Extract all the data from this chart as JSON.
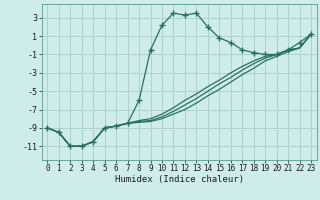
{
  "xlabel": "Humidex (Indice chaleur)",
  "bg_color": "#ceecea",
  "grid_color": "#aaceca",
  "line_color": "#2a7060",
  "marker": "+",
  "markersize": 4,
  "linewidth": 0.9,
  "xlim": [
    -0.5,
    23.5
  ],
  "ylim": [
    -12.5,
    4.5
  ],
  "yticks": [
    -11,
    -9,
    -7,
    -5,
    -3,
    -1,
    1,
    3
  ],
  "xticks": [
    0,
    1,
    2,
    3,
    4,
    5,
    6,
    7,
    8,
    9,
    10,
    11,
    12,
    13,
    14,
    15,
    16,
    17,
    18,
    19,
    20,
    21,
    22,
    23
  ],
  "series": [
    {
      "x": [
        0,
        1,
        2,
        3,
        4,
        5,
        6,
        7,
        8,
        9,
        10,
        11,
        12,
        13,
        14,
        15,
        16,
        17,
        18,
        19,
        20,
        21,
        22,
        23
      ],
      "y": [
        -9.0,
        -9.5,
        -11.0,
        -11.0,
        -10.5,
        -9.0,
        -8.8,
        -8.5,
        -6.0,
        -0.5,
        2.2,
        3.5,
        3.3,
        3.5,
        2.0,
        0.8,
        0.3,
        -0.5,
        -0.8,
        -1.0,
        -1.0,
        -0.5,
        0.3,
        1.2
      ],
      "has_markers": true
    },
    {
      "x": [
        0,
        1,
        2,
        3,
        4,
        5,
        6,
        7,
        8,
        9,
        10,
        11,
        12,
        13,
        14,
        15,
        16,
        17,
        18,
        19,
        20,
        21,
        22,
        23
      ],
      "y": [
        -9.0,
        -9.5,
        -11.0,
        -11.0,
        -10.5,
        -9.0,
        -8.8,
        -8.5,
        -8.2,
        -8.0,
        -7.5,
        -6.8,
        -6.0,
        -5.3,
        -4.5,
        -3.8,
        -3.0,
        -2.3,
        -1.7,
        -1.2,
        -1.0,
        -0.5,
        -0.3,
        1.2
      ],
      "has_markers": false
    },
    {
      "x": [
        0,
        1,
        2,
        3,
        4,
        5,
        6,
        7,
        8,
        9,
        10,
        11,
        12,
        13,
        14,
        15,
        16,
        17,
        18,
        19,
        20,
        21,
        22,
        23
      ],
      "y": [
        -9.0,
        -9.5,
        -11.0,
        -11.0,
        -10.5,
        -9.0,
        -8.8,
        -8.5,
        -8.3,
        -8.2,
        -7.8,
        -7.2,
        -6.5,
        -5.8,
        -5.0,
        -4.2,
        -3.5,
        -2.7,
        -2.0,
        -1.4,
        -1.0,
        -0.5,
        -0.3,
        1.2
      ],
      "has_markers": false
    },
    {
      "x": [
        0,
        1,
        2,
        3,
        4,
        5,
        6,
        7,
        8,
        9,
        10,
        11,
        12,
        13,
        14,
        15,
        16,
        17,
        18,
        19,
        20,
        21,
        22,
        23
      ],
      "y": [
        -9.0,
        -9.5,
        -11.0,
        -11.0,
        -10.5,
        -9.0,
        -8.8,
        -8.5,
        -8.4,
        -8.3,
        -8.0,
        -7.5,
        -7.0,
        -6.3,
        -5.5,
        -4.8,
        -4.0,
        -3.2,
        -2.5,
        -1.7,
        -1.2,
        -0.7,
        -0.3,
        1.2
      ],
      "has_markers": false
    }
  ]
}
